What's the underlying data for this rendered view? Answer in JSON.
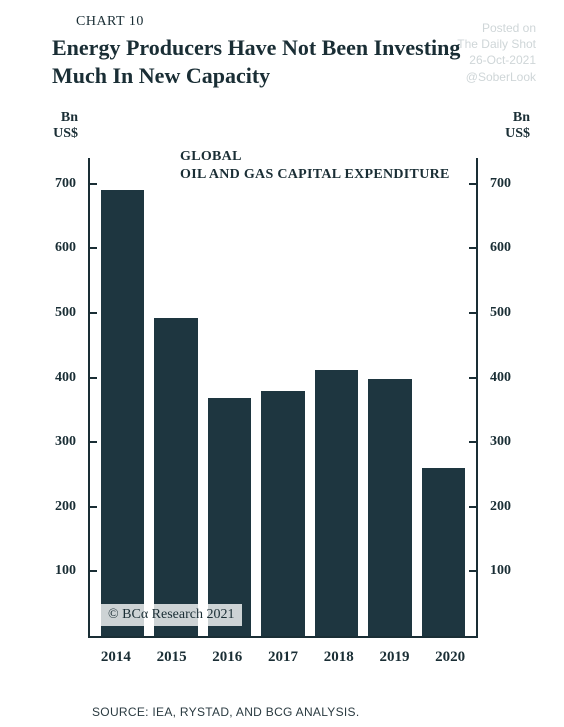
{
  "header": {
    "chart_label": "CHART 10",
    "title": "Energy Producers Have Not Been Investing Much In New Capacity"
  },
  "watermark": {
    "line1": "Posted on",
    "line2": "The Daily Shot",
    "line3": "26-Oct-2021",
    "line4": "@SoberLook",
    "color": "#cfd6d8"
  },
  "chart": {
    "type": "bar",
    "series_label_line1": "GLOBAL",
    "series_label_line2": "OIL AND GAS CAPITAL EXPENDITURE",
    "y_axis_label": "Bn US$",
    "y_ticks": [
      100,
      200,
      300,
      400,
      500,
      600,
      700
    ],
    "y_max": 740,
    "categories": [
      "2014",
      "2015",
      "2016",
      "2017",
      "2018",
      "2019",
      "2020"
    ],
    "values": [
      690,
      493,
      368,
      380,
      412,
      398,
      260
    ],
    "bar_color": "#1e3640",
    "axis_color": "#1a2e35",
    "background_color": "#ffffff",
    "label_fontsize": 14,
    "title_fontsize": 22
  },
  "footer": {
    "copyright": "© BCα Research 2021",
    "source": "SOURCE: IEA, RYSTAD, AND BCG ANALYSIS."
  }
}
